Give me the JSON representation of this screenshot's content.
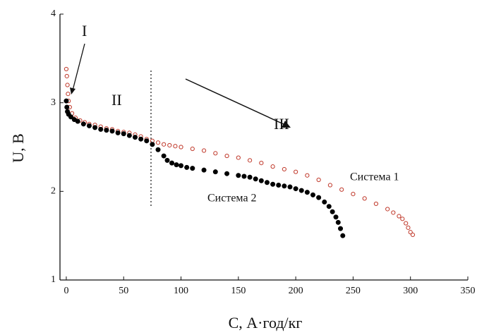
{
  "chart_data": {
    "type": "scatter",
    "x_label": "C, А·год/кг",
    "y_label": "U, В",
    "xlim": [
      -5.5,
      350
    ],
    "ylim": [
      1,
      4
    ],
    "xticks": [
      0,
      50,
      100,
      150,
      200,
      250,
      300,
      350
    ],
    "yticks": [
      1,
      2,
      3,
      4
    ],
    "annotations": [
      "I",
      "II",
      "III",
      "Система 1",
      "Система 2"
    ],
    "series": [
      {
        "name": "Система 1",
        "color": "#c0392b",
        "marker": "open",
        "x": [
          0,
          0.5,
          1,
          1.5,
          2,
          3,
          5,
          8,
          12,
          16,
          20,
          25,
          30,
          35,
          40,
          45,
          50,
          55,
          60,
          65,
          70,
          75,
          80,
          85,
          90,
          95,
          100,
          110,
          120,
          130,
          140,
          150,
          160,
          170,
          180,
          190,
          200,
          210,
          220,
          230,
          240,
          250,
          260,
          270,
          280,
          285,
          290,
          293,
          296,
          298,
          300,
          302
        ],
        "values": [
          3.38,
          3.3,
          3.2,
          3.1,
          3.02,
          2.95,
          2.88,
          2.83,
          2.8,
          2.78,
          2.76,
          2.75,
          2.73,
          2.71,
          2.7,
          2.68,
          2.67,
          2.66,
          2.64,
          2.62,
          2.59,
          2.57,
          2.55,
          2.53,
          2.52,
          2.51,
          2.5,
          2.48,
          2.46,
          2.43,
          2.4,
          2.38,
          2.35,
          2.32,
          2.28,
          2.25,
          2.22,
          2.18,
          2.13,
          2.07,
          2.02,
          1.97,
          1.92,
          1.86,
          1.8,
          1.76,
          1.72,
          1.69,
          1.64,
          1.59,
          1.54,
          1.51
        ]
      },
      {
        "name": "Система 2",
        "color": "#000000",
        "marker": "filled",
        "x": [
          0,
          0.5,
          1,
          2,
          4,
          7,
          10,
          15,
          20,
          25,
          30,
          35,
          40,
          45,
          50,
          55,
          60,
          65,
          70,
          75,
          80,
          85,
          88,
          92,
          96,
          100,
          105,
          110,
          120,
          130,
          140,
          150,
          155,
          160,
          165,
          170,
          175,
          180,
          185,
          190,
          195,
          200,
          205,
          210,
          215,
          220,
          225,
          229,
          232,
          235,
          237,
          239,
          241
        ],
        "values": [
          3.02,
          2.95,
          2.9,
          2.87,
          2.84,
          2.81,
          2.79,
          2.76,
          2.74,
          2.72,
          2.7,
          2.69,
          2.68,
          2.66,
          2.65,
          2.63,
          2.61,
          2.59,
          2.57,
          2.53,
          2.47,
          2.4,
          2.35,
          2.32,
          2.3,
          2.29,
          2.27,
          2.26,
          2.24,
          2.22,
          2.2,
          2.18,
          2.17,
          2.16,
          2.14,
          2.12,
          2.1,
          2.08,
          2.07,
          2.06,
          2.05,
          2.03,
          2.01,
          1.99,
          1.96,
          1.93,
          1.88,
          1.83,
          1.77,
          1.71,
          1.65,
          1.58,
          1.5
        ]
      }
    ]
  }
}
